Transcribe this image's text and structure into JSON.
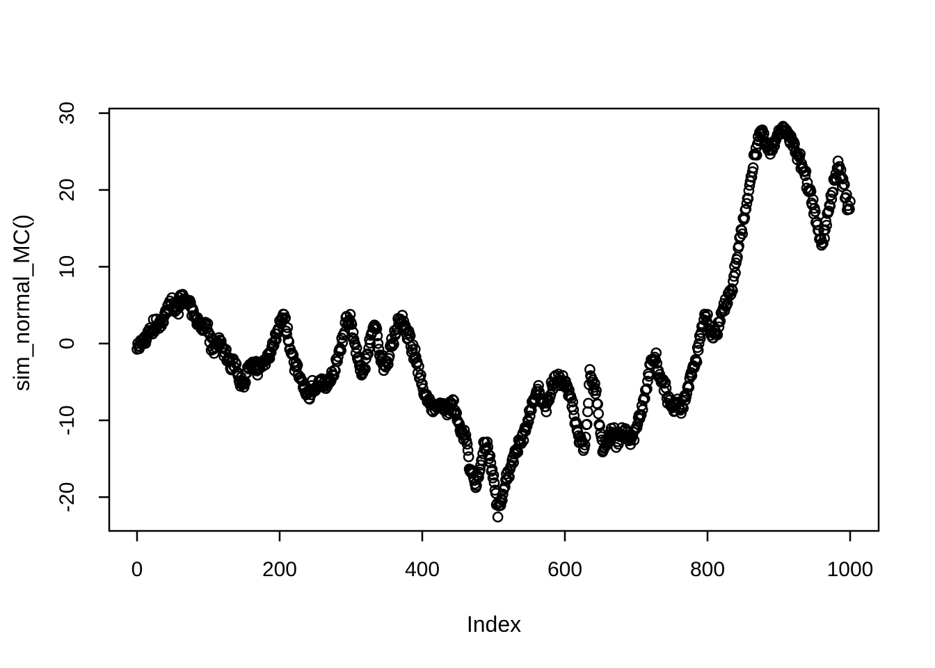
{
  "figure": {
    "background": "#ffffff",
    "foreground": "#000000"
  },
  "chart_data": {
    "type": "scatter",
    "title": "",
    "xlabel": "Index",
    "ylabel": "sim_normal_MC()",
    "marker": "open-circle",
    "marker_color": "#000000",
    "grid": false,
    "legend": null,
    "x_ticks": [
      0,
      200,
      400,
      600,
      800,
      1000
    ],
    "y_ticks": [
      -20,
      -10,
      0,
      10,
      20,
      30
    ],
    "xlim": [
      -39,
      1040
    ],
    "ylim": [
      -24.4,
      30.6
    ],
    "n_points": 1001,
    "series": [
      {
        "name": "sim_normal_MC",
        "description": "simulated normal random-walk, open-circle points at indices 0..1000; anchors are [index, value] samples of the path",
        "jitter_sd": 0.8,
        "anchors": [
          [
            0,
            -0.5
          ],
          [
            6,
            -0.2
          ],
          [
            12,
            0.8
          ],
          [
            18,
            1.8
          ],
          [
            24,
            2.2
          ],
          [
            30,
            2.6
          ],
          [
            36,
            3.2
          ],
          [
            42,
            4.6
          ],
          [
            48,
            5.2
          ],
          [
            54,
            4.4
          ],
          [
            60,
            5.0
          ],
          [
            66,
            5.9
          ],
          [
            72,
            5.2
          ],
          [
            78,
            4.2
          ],
          [
            84,
            2.8
          ],
          [
            90,
            2.2
          ],
          [
            96,
            2.5
          ],
          [
            102,
            0.6
          ],
          [
            108,
            -0.8
          ],
          [
            114,
            0.0
          ],
          [
            120,
            -0.6
          ],
          [
            126,
            -1.5
          ],
          [
            132,
            -2.4
          ],
          [
            138,
            -3.2
          ],
          [
            144,
            -4.8
          ],
          [
            150,
            -5.3
          ],
          [
            157,
            -3.0
          ],
          [
            164,
            -2.6
          ],
          [
            170,
            -3.2
          ],
          [
            176,
            -2.6
          ],
          [
            182,
            -2.0
          ],
          [
            188,
            -1.0
          ],
          [
            194,
            0.8
          ],
          [
            200,
            2.4
          ],
          [
            205,
            3.6
          ],
          [
            210,
            1.6
          ],
          [
            216,
            -1.0
          ],
          [
            222,
            -3.0
          ],
          [
            228,
            -4.2
          ],
          [
            234,
            -5.6
          ],
          [
            240,
            -7.0
          ],
          [
            246,
            -5.8
          ],
          [
            252,
            -6.0
          ],
          [
            258,
            -5.0
          ],
          [
            264,
            -5.8
          ],
          [
            270,
            -4.6
          ],
          [
            276,
            -3.6
          ],
          [
            282,
            -1.6
          ],
          [
            288,
            0.6
          ],
          [
            294,
            3.4
          ],
          [
            299,
            3.0
          ],
          [
            305,
            0.4
          ],
          [
            310,
            -1.8
          ],
          [
            315,
            -4.3
          ],
          [
            320,
            -2.6
          ],
          [
            326,
            0.2
          ],
          [
            332,
            2.0
          ],
          [
            336,
            1.6
          ],
          [
            341,
            -1.6
          ],
          [
            346,
            -3.2
          ],
          [
            351,
            -2.6
          ],
          [
            357,
            -0.2
          ],
          [
            363,
            1.6
          ],
          [
            369,
            3.5
          ],
          [
            374,
            2.4
          ],
          [
            380,
            1.0
          ],
          [
            386,
            -0.8
          ],
          [
            392,
            -2.2
          ],
          [
            397,
            -4.0
          ],
          [
            402,
            -6.2
          ],
          [
            408,
            -7.2
          ],
          [
            414,
            -7.8
          ],
          [
            420,
            -8.5
          ],
          [
            426,
            -7.8
          ],
          [
            432,
            -8.4
          ],
          [
            438,
            -8.3
          ],
          [
            444,
            -8.0
          ],
          [
            450,
            -10.2
          ],
          [
            456,
            -11.6
          ],
          [
            461,
            -12.4
          ],
          [
            466,
            -15.4
          ],
          [
            471,
            -17.2
          ],
          [
            476,
            -18.5
          ],
          [
            481,
            -16.2
          ],
          [
            486,
            -13.8
          ],
          [
            491,
            -12.8
          ],
          [
            496,
            -15.2
          ],
          [
            501,
            -18.5
          ],
          [
            506,
            -21.8
          ],
          [
            511,
            -20.6
          ],
          [
            516,
            -18.6
          ],
          [
            521,
            -16.8
          ],
          [
            527,
            -15.0
          ],
          [
            533,
            -13.6
          ],
          [
            539,
            -12.2
          ],
          [
            545,
            -11.2
          ],
          [
            551,
            -9.0
          ],
          [
            557,
            -7.3
          ],
          [
            563,
            -6.3
          ],
          [
            569,
            -7.6
          ],
          [
            575,
            -8.7
          ],
          [
            580,
            -6.0
          ],
          [
            585,
            -4.7
          ],
          [
            591,
            -4.5
          ],
          [
            597,
            -5.0
          ],
          [
            603,
            -5.4
          ],
          [
            609,
            -7.4
          ],
          [
            615,
            -10.4
          ],
          [
            621,
            -12.6
          ],
          [
            627,
            -14.0
          ],
          [
            631,
            -10.0
          ],
          [
            635,
            -4.0
          ],
          [
            639,
            -4.8
          ],
          [
            644,
            -6.8
          ],
          [
            649,
            -10.5
          ],
          [
            654,
            -14.2
          ],
          [
            659,
            -13.0
          ],
          [
            664,
            -11.4
          ],
          [
            669,
            -12.0
          ],
          [
            674,
            -13.0
          ],
          [
            680,
            -11.4
          ],
          [
            686,
            -12.0
          ],
          [
            692,
            -12.8
          ],
          [
            698,
            -11.6
          ],
          [
            704,
            -9.8
          ],
          [
            710,
            -7.6
          ],
          [
            716,
            -4.6
          ],
          [
            722,
            -2.0
          ],
          [
            727,
            -1.8
          ],
          [
            733,
            -3.8
          ],
          [
            739,
            -5.6
          ],
          [
            745,
            -7.0
          ],
          [
            751,
            -8.4
          ],
          [
            757,
            -7.6
          ],
          [
            763,
            -8.8
          ],
          [
            769,
            -7.4
          ],
          [
            775,
            -4.6
          ],
          [
            781,
            -2.8
          ],
          [
            786,
            -1.2
          ],
          [
            791,
            1.8
          ],
          [
            796,
            3.6
          ],
          [
            801,
            2.6
          ],
          [
            807,
            0.8
          ],
          [
            813,
            1.6
          ],
          [
            819,
            3.6
          ],
          [
            825,
            5.0
          ],
          [
            831,
            6.6
          ],
          [
            836,
            8.2
          ],
          [
            841,
            11.0
          ],
          [
            846,
            13.6
          ],
          [
            851,
            16.2
          ],
          [
            856,
            18.8
          ],
          [
            861,
            21.6
          ],
          [
            865,
            23.8
          ],
          [
            869,
            25.4
          ],
          [
            873,
            27.0
          ],
          [
            877,
            27.4
          ],
          [
            881,
            26.2
          ],
          [
            886,
            24.8
          ],
          [
            891,
            25.8
          ],
          [
            896,
            26.4
          ],
          [
            901,
            27.6
          ],
          [
            906,
            28.2
          ],
          [
            911,
            27.4
          ],
          [
            916,
            26.6
          ],
          [
            921,
            25.8
          ],
          [
            926,
            24.6
          ],
          [
            931,
            23.4
          ],
          [
            936,
            22.4
          ],
          [
            941,
            20.4
          ],
          [
            946,
            18.8
          ],
          [
            951,
            16.8
          ],
          [
            956,
            13.8
          ],
          [
            960,
            13.2
          ],
          [
            965,
            15.0
          ],
          [
            970,
            17.2
          ],
          [
            975,
            19.6
          ],
          [
            980,
            22.0
          ],
          [
            984,
            23.0
          ],
          [
            988,
            22.0
          ],
          [
            992,
            20.2
          ],
          [
            996,
            18.0
          ],
          [
            1000,
            18.4
          ]
        ]
      }
    ]
  }
}
